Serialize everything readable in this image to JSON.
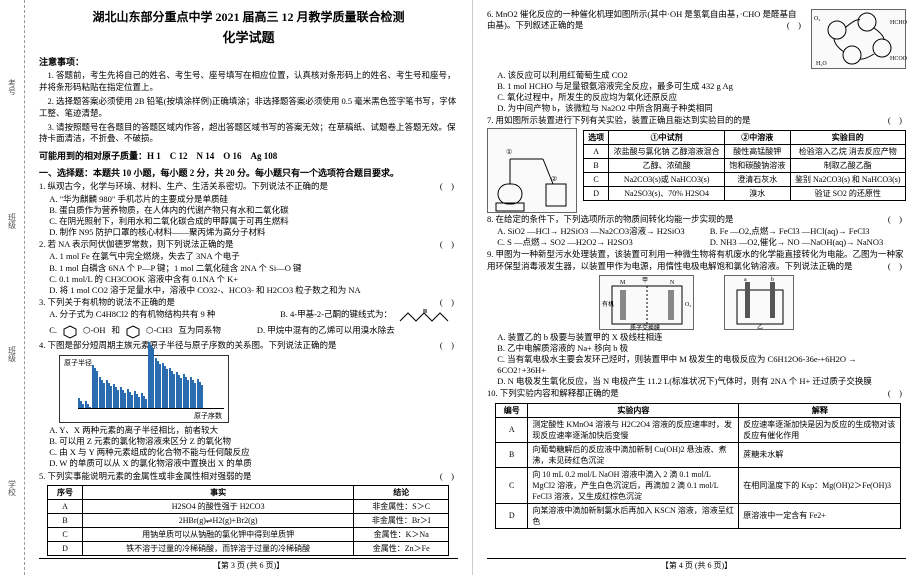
{
  "header": {
    "line1": "湖北山东部分重点中学 2021 届高三 12 月教学质量联合检测",
    "line2": "化学试题"
  },
  "binding_labels": [
    "考号",
    "班级",
    "班级",
    "学校"
  ],
  "notice_head": "注意事项：",
  "notices": [
    "1. 答题前，考生先将自己的姓名、考生号、座号填写在相应位置，认真核对条形码上的姓名、考生号和座号，并将条形码粘贴在指定位置上。",
    "2. 选择题答案必须使用 2B 铅笔(按填涂样例)正确填涂；非选择题答案必须使用 0.5 毫米黑色签字笔书写，字体工整、笔迹清楚。",
    "3. 请按照题号在各题目的答题区域内作答，超出答题区域书写的答案无效；在草稿纸、试题卷上答题无效。保持卡面清洁，不折叠、不破损。"
  ],
  "atomic_masses": "可能用到的相对原子质量：H 1　C 12　N 14　O 16　Ag 108",
  "part1_head": "一、选择题：本题共 10 小题，每小题 2 分，共 20 分。每小题只有一个选项符合题目要求。",
  "q1": {
    "stem": "1. 纵观古今，化学与环境、材料、生产、生活关系密切。下列说法不正确的是",
    "opts": [
      "A. \"华为麒麟 980\" 手机芯片的主要成分是单质硅",
      "B. 蛋白质作为营养物质，在人体内的代谢产物只有水和二氧化碳",
      "C. 在阴光照射下，利用水和二氧化碳合成的甲醇属于可再生燃料",
      "D. 制作 N95 防护口罩的核心材料——聚丙烯为高分子材料"
    ]
  },
  "q2": {
    "stem": "2. 若 NA 表示阿伏伽德罗常数，则下列说法正确的是",
    "opts": [
      "A. 1 mol Fe 在氯气中完全燃烧，失去了 3NA 个电子",
      "B. 1 mol 白磷含 6NA 个 P—P 键；1 mol 二氧化硅含 2NA 个 Si—O 键",
      "C. 0.1 mol/L 的 CH3COOK 溶液中含有 0.1NA 个 K+",
      "D. 将 1 mol CO2 溶于足量水中，溶液中 CO32-、HCO3- 和 H2CO3 粒子数之和为 NA"
    ]
  },
  "q3": {
    "stem": "3. 下列关于有机物的说法不正确的是",
    "opts_row1": {
      "a": "A. 分子式为 C4H8Cl2 的有机物结构共有 9 种",
      "b_label": "B. 4-甲基-2-己酮的键线式为：",
      "b_svg_label": "zigzag-ketone"
    },
    "opts_row2": {
      "c_pre": "C. ",
      "c_hex1": "⬡-OH",
      "c_mid": " 和 ",
      "c_hex2": "⬡-CH3",
      "c_post": " 互为同系物",
      "d": "D. 甲烷中混有的乙烯可以用溴水除去"
    }
  },
  "q4": {
    "stem": "4. 下图是部分短周期主族元素原子半径与原子序数的关系图。下列说法正确的是",
    "chart": {
      "type": "bar",
      "ylabel": "原子半径",
      "xlabel": "原子序数",
      "x": [
        1,
        2,
        3,
        4,
        5,
        6,
        7,
        8,
        9,
        10,
        11,
        12,
        13,
        14,
        15,
        16,
        17,
        18
      ],
      "heights": [
        8,
        6,
        34,
        25,
        22,
        19,
        17,
        15,
        14,
        12,
        52,
        40,
        36,
        32,
        29,
        27,
        25,
        23
      ],
      "bar_color": "#2b6cb0",
      "grid_color": "#d0d0d0",
      "label_fontsize": 7
    },
    "opts": [
      "A. Y、X 两种元素的离子半径相比，前者较大",
      "B. 可以用 Z 元素的氯化物溶液来区分 Z 的氧化物",
      "C. 由 X 与 Y 两种元素组成的化合物不能与任何酸反应",
      "D. W 的单质可以从 X 的氯化物溶液中置换出 X 的单质"
    ]
  },
  "q5": {
    "stem": "5. 下列实事能说明元素的金属性或非金属性相对强弱的是",
    "table": {
      "cols": [
        "序号",
        "事实",
        "结论"
      ],
      "rows": [
        [
          "A",
          "H2SO4 的酸性强于 H2CO3",
          "非金属性：S＞C"
        ],
        [
          "B",
          "2HBr(g)⇌H2(g)+Br2(g)",
          "非金属性：Br＞I"
        ],
        [
          "C",
          "用钠单质可以从钠融的氯化钾中得到单质钾",
          "金属性：K＞Na"
        ],
        [
          "D",
          "铁不溶于过量的冷稀硝酸，而锌溶于过量的冷稀硝酸",
          "金属性：Zn＞Fe"
        ]
      ]
    }
  },
  "q6": {
    "stem": "6. MnO2 催化反应的一种催化机理如图所示(其中·OH 是氢氧自由基，·CHO 是醛基自由基)。下列叙述正确的是",
    "opts": [
      "A. 该反应可以利用红葡萄生成 CO2",
      "B. 1 mol HCHO 与足量银氨溶液完全反应，最多可生成 432 g Ag",
      "C. 氧化过程中，所发生的反应均为氧化还原反应",
      "D. 为中间产物 b，该微粒与 Na2O2 中所含阴离子种类相同"
    ],
    "diagram_label": "catalysis-cycle"
  },
  "q7": {
    "stem": "7. 用如图所示装置进行下列有关实验，装置正确且能达到实验目的的是",
    "table": {
      "cols": [
        "选项",
        "①中试剂",
        "②中溶液",
        "实验目的"
      ],
      "rows": [
        [
          "A",
          "浓盐酸与氯化钠 乙醇溶液混合",
          "酸性高锰酸钾",
          "检验溶入乙烷 消去反应产物"
        ],
        [
          "B",
          "乙醇、浓硫酸",
          "饱和碳酸钠溶液",
          "制取乙酸乙酯"
        ],
        [
          "C",
          "Na2CO3(s)或 NaHCO3(s)",
          "澄清石灰水",
          "鉴别 Na2CO3(s) 和 NaHCO3(s)"
        ],
        [
          "D",
          "Na2SO3(s)、70% H2SO4",
          "溴水",
          "验证 SO2 的还原性"
        ]
      ]
    },
    "diagram_label": "distillation-setup"
  },
  "q8": {
    "stem": "8. 在给定的条件下，下列选项所示的物质间转化均能一步实现的是",
    "opts": [
      "A. SiO2 —HCl→ H2SiO3 —Na2CO3溶液→ H2SiO3",
      "B. Fe —O2,点燃→ FeCl3 —HCl(aq)→ FeCl3",
      "C. S —点燃→ SO2 —H2O2→ H2SO3",
      "D. NH3 —O2,催化→ NO —NaOH(aq)→ NaNO3"
    ]
  },
  "q9": {
    "stem": "9. 甲图为一种新型污水处理装置，该装置可利用一种微生物将有机废水的化学能直接转化为电能。乙图为一种家用环保型消毒液发生器，以装置甲作为电源，用惰性电极电解饱和氯化钠溶液。下列说法正确的是",
    "opts": [
      "A. 装置乙的 b 极要与装置甲的 X 极线柱相连",
      "B. 乙中电解质溶液的 Na+ 移向 b 极",
      "C. 当有氧电极水主要会发环己烃时，则装置甲中 M 极发生的电极反应为 C6H12O6-36e-+6H2O → 6CO2↑+36H+",
      "D. N 电极发生氧化反应，当 N 电极产生 11.2 L(标准状况下)气体时，则有 2NA 个 H+ 迁过质子交换膜"
    ],
    "diag_left": "fuel-cell-organic",
    "diag_right": "electrolysis-cell"
  },
  "q10": {
    "stem": "10. 下列实验内容和解释都正确的是",
    "table": {
      "cols": [
        "编号",
        "实验内容",
        "解释"
      ],
      "rows": [
        [
          "A",
          "测定酸性 KMnO4 溶液与 H2C2O4 溶液的反应速率时，发现反应速率逐渐加快后变慢",
          "反应速率逐渐加快是因为反应的生成物对该反应有催化作用"
        ],
        [
          "B",
          "向葡萄糖解后的反应液中滴加新制 Cu(OH)2 悬浊液、煮沸，未见砖红色沉淀",
          "蔗糖未水解"
        ],
        [
          "C",
          "向 10 mL 0.2 mol/L NaOH 溶液中滴入 2 滴 0.1 mol/L MgCl2 溶液，产生白色沉淀后，再滴加 2 滴 0.1 mol/L FeCl3 溶液，又生成红棕色沉淀",
          "在相同温度下的 Ksp：Mg(OH)2＞Fe(OH)3"
        ],
        [
          "D",
          "向某溶液中滴加新制氯水后再加入 KSCN 溶液，溶液呈红色",
          "原溶液中一定含有 Fe2+"
        ]
      ]
    }
  },
  "footers": {
    "left": "【第 3 页 (共 6 页)】",
    "right": "【第 4 页 (共 6 页)】"
  },
  "colors": {
    "text": "#000000",
    "border": "#000000",
    "dashed": "#999999",
    "bar": "#2b6cb0"
  }
}
